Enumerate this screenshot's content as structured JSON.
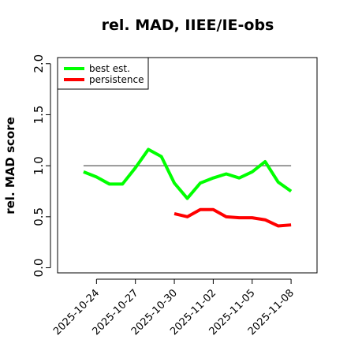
{
  "chart_data": {
    "type": "line",
    "title": "rel. MAD, IIEE/IE-obs",
    "ylabel": "rel. MAD score",
    "x": [
      "2025-10-23",
      "2025-10-24",
      "2025-10-25",
      "2025-10-26",
      "2025-10-27",
      "2025-10-28",
      "2025-10-29",
      "2025-10-30",
      "2025-10-31",
      "2025-11-01",
      "2025-11-02",
      "2025-11-03",
      "2025-11-04",
      "2025-11-05",
      "2025-11-06",
      "2025-11-07",
      "2025-11-08"
    ],
    "series": [
      {
        "name": "best est.",
        "color": "#00ff00",
        "values": [
          0.94,
          0.89,
          0.82,
          0.82,
          0.98,
          1.16,
          1.09,
          0.83,
          0.68,
          0.83,
          0.88,
          0.92,
          0.88,
          0.94,
          1.04,
          0.84,
          0.75
        ]
      },
      {
        "name": "persistence",
        "color": "#ff0000",
        "values": [
          null,
          null,
          null,
          null,
          null,
          null,
          null,
          0.53,
          0.5,
          0.57,
          0.57,
          0.5,
          0.49,
          0.49,
          0.47,
          0.41,
          0.42
        ]
      }
    ],
    "hline": 1.0,
    "xlim": [
      "2025-10-21",
      "2025-11-10"
    ],
    "xticks": [
      "2025-10-24",
      "2025-10-27",
      "2025-10-30",
      "2025-11-02",
      "2025-11-05",
      "2025-11-08"
    ],
    "ylim": [
      -0.05,
      2.06
    ],
    "yticks": [
      {
        "value": 0,
        "label": "0.0"
      },
      {
        "value": 0.5,
        "label": "0.5"
      },
      {
        "value": 1,
        "label": "1.0"
      },
      {
        "value": 1.5,
        "label": "1.5"
      },
      {
        "value": 2,
        "label": "2.0"
      }
    ],
    "legend": "top-left"
  }
}
